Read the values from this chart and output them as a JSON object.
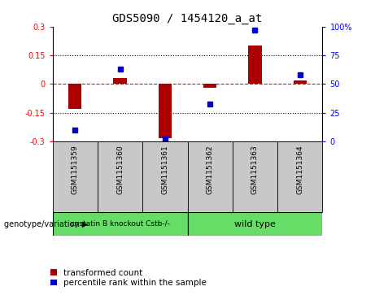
{
  "title": "GDS5090 / 1454120_a_at",
  "samples": [
    "GSM1151359",
    "GSM1151360",
    "GSM1151361",
    "GSM1151362",
    "GSM1151363",
    "GSM1151364"
  ],
  "red_values": [
    -0.13,
    0.03,
    -0.28,
    -0.02,
    0.2,
    0.02
  ],
  "blue_values": [
    10,
    63,
    2,
    33,
    97,
    58
  ],
  "ylim_left": [
    -0.3,
    0.3
  ],
  "ylim_right": [
    0,
    100
  ],
  "yticks_left": [
    -0.3,
    -0.15,
    0,
    0.15,
    0.3
  ],
  "yticks_right": [
    0,
    25,
    50,
    75,
    100
  ],
  "ytick_labels_left": [
    "-0.3",
    "-0.15",
    "0",
    "0.15",
    "0.3"
  ],
  "ytick_labels_right": [
    "0",
    "25",
    "50",
    "75",
    "100%"
  ],
  "hlines": [
    0.15,
    0.0,
    -0.15
  ],
  "hline_styles": [
    "dotted",
    "dashed",
    "dotted"
  ],
  "hline_colors": [
    "black",
    "red",
    "black"
  ],
  "group1_label": "cystatin B knockout Cstb-/-",
  "group2_label": "wild type",
  "group1_indices": [
    0,
    1,
    2
  ],
  "group2_indices": [
    3,
    4,
    5
  ],
  "group1_color": "#66DD66",
  "group2_color": "#66DD66",
  "genotype_label": "genotype/variation",
  "legend_red": "transformed count",
  "legend_blue": "percentile rank within the sample",
  "bar_color": "#AA0000",
  "dot_color": "#0000CC",
  "bar_width": 0.3,
  "background_color": "#ffffff",
  "plot_bg_color": "#ffffff",
  "sample_bg_color": "#C8C8C8"
}
